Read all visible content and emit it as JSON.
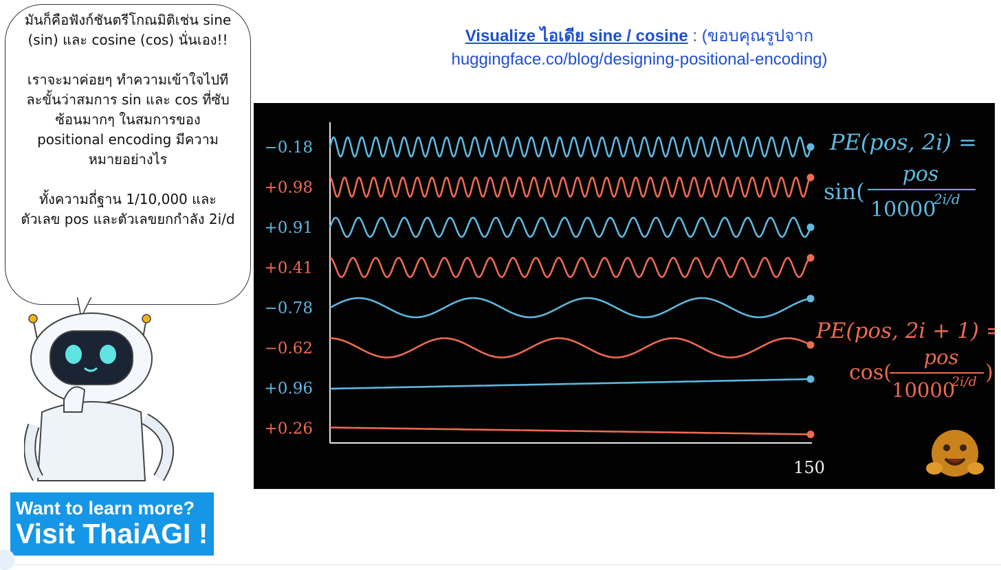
{
  "speech_bubble": {
    "paragraphs": [
      "มันก็คือฟังก์ชันตรีโกณมิติเช่น sine (sin) และ cosine (cos) นั่นเอง!!",
      "เราจะมาค่อยๆ ทำความเข้าใจไปทีละขั้นว่าสมการ sin และ cos ที่ซับซ้อนมากๆ ในสมการของ positional encoding มีความหมายอย่างไร",
      "ทั้งความถี่ฐาน 1/10,000 และตัวเลข pos และตัวเลขยกกำลัง 2i/d"
    ]
  },
  "header": {
    "link_text": "Visualize ไอเดีย sine / cosine",
    "separator": " : ",
    "credit_line1": "(ขอบคุณรูปจาก",
    "credit_line2": "huggingface.co/blog/designing-positional-encoding)"
  },
  "cta": {
    "line1": "Want to learn more?",
    "line2": "Visit ThaiAGI !"
  },
  "colors": {
    "blue_wave": "#5fb8e0",
    "red_wave": "#ee6a52",
    "link_blue": "#1e4fd6",
    "cta_bg": "#1696e6"
  },
  "chart_data": {
    "type": "line",
    "x_end_label": "150",
    "series": [
      {
        "label": "−0.18",
        "color": "blue",
        "cycles": 34,
        "phase": 0
      },
      {
        "label": "+0.98",
        "color": "red",
        "cycles": 33,
        "phase": 1.57
      },
      {
        "label": "+0.91",
        "color": "blue",
        "cycles": 21,
        "phase": 0
      },
      {
        "label": "+0.41",
        "color": "red",
        "cycles": 21,
        "phase": 1.57
      },
      {
        "label": "−0.78",
        "color": "blue",
        "cycles": 4.2,
        "phase": 0
      },
      {
        "label": "−0.62",
        "color": "red",
        "cycles": 4.2,
        "phase": 1.57
      },
      {
        "label": "+0.96",
        "color": "blue",
        "cycles": 0.09,
        "phase": 0
      },
      {
        "label": "+0.26",
        "color": "red",
        "cycles": 0.09,
        "phase": 1.57
      }
    ],
    "formula_sin": {
      "lhs": "PE(pos, 2i) =",
      "fn": "sin(",
      "numerator": "pos",
      "denominator": "10000",
      "exponent": "2i/d",
      "close": ""
    },
    "formula_cos": {
      "lhs": "PE(pos, 2i + 1) =",
      "fn": "cos(",
      "numerator": "pos",
      "denominator": "10000",
      "exponent": "2i/d",
      "close": ")"
    }
  }
}
